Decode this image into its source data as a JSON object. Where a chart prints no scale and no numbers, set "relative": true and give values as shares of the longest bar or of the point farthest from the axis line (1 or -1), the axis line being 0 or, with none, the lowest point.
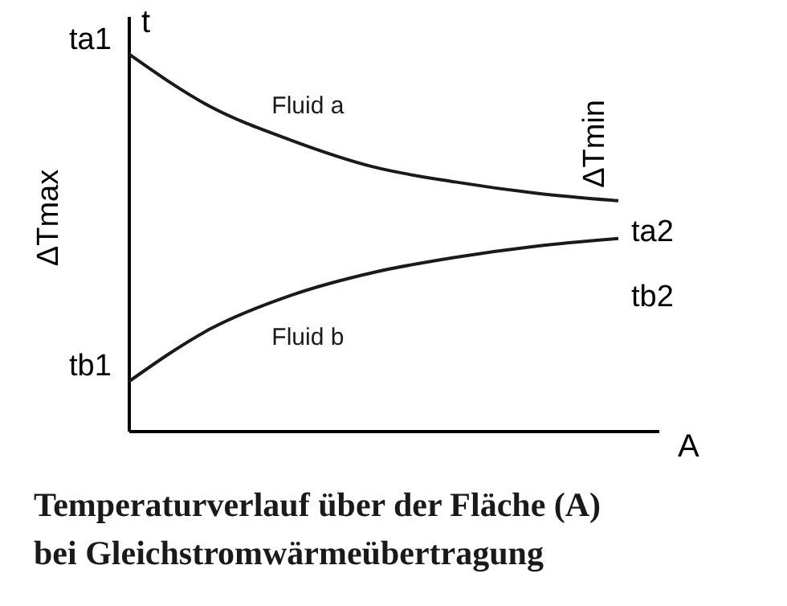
{
  "chart_data": {
    "type": "line",
    "relative": true,
    "title": "Temperaturverlauf über der Fläche (A)\nbei Gleichstromwärmeübertragung",
    "xlabel": "A",
    "ylabel": "t",
    "categories": [
      null,
      null,
      null,
      null,
      null,
      null,
      null
    ],
    "series": [
      {
        "name": "Fluid a",
        "color": "#1a1a1a",
        "values": [
          1.0,
          0.86,
          0.77,
          0.7,
          0.66,
          0.63,
          0.61
        ]
      },
      {
        "name": "Fluid b",
        "color": "#1a1a1a",
        "values": [
          0.13,
          0.27,
          0.36,
          0.42,
          0.46,
          0.49,
          0.51
        ]
      }
    ],
    "marker": "none",
    "line_style": "solid",
    "grid": false,
    "annotations": [
      "ta1",
      "tb1",
      "ta2",
      "tb2",
      "ΔTmax",
      "ΔTmin"
    ]
  }
}
